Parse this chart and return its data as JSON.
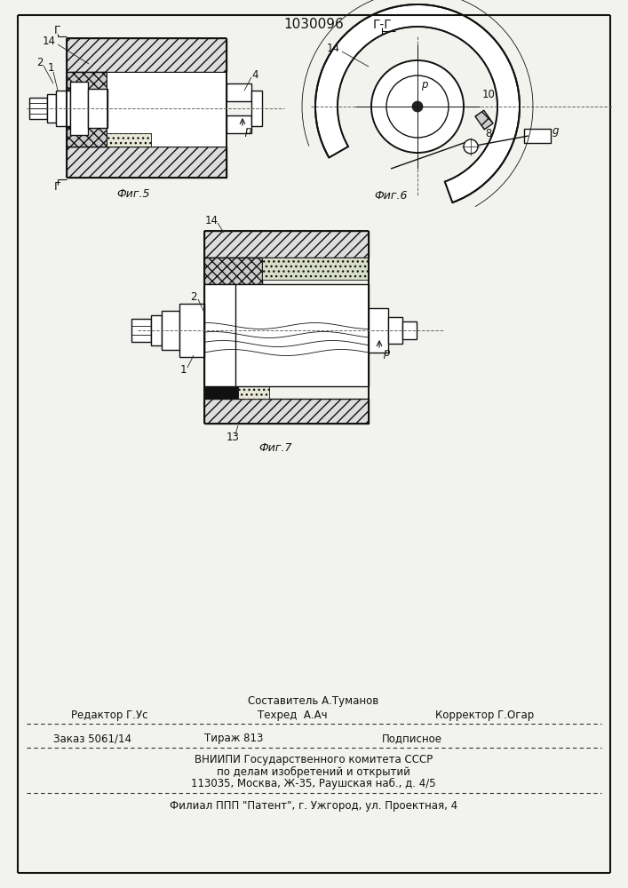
{
  "title": "1030096",
  "fig5_label": "Фиг.5",
  "fig6_label": "Фиг.6",
  "fig7_label": "Фиг.7",
  "section_label": "Г-Г",
  "composer_line": "Составитель А.Туманов",
  "editor": "Редактор Г.Ус",
  "tekhred": "Техред  А.Ач",
  "corrector": "Корректор Г.Огар",
  "order": "Заказ 5061/14",
  "tirazh": "Тираж 813",
  "podpisnoe": "Подписное",
  "vniip_line1": "ВНИИПИ Государственного комитета СССР",
  "vniip_line2": "по делам изобретений и открытий",
  "vniip_line3": "113035, Москва, Ж-35, Раушская наб., д. 4/5",
  "filial_line": "Филиал ППП \"Патент\", г. Ужгород, ул. Проектная, 4",
  "bg_color": "#f2f2ee",
  "lc": "#111111"
}
